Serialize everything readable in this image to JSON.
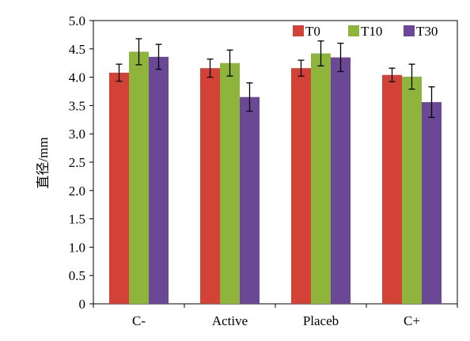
{
  "chart_data": {
    "type": "bar",
    "ylabel": "直径/mm",
    "xlabel": "",
    "title": "",
    "ylim": [
      0,
      5.0
    ],
    "ytick_step": 0.5,
    "ytick_labels": [
      "0",
      "0.5",
      "1.0",
      "1.5",
      "2.0",
      "2.5",
      "3.0",
      "3.5",
      "4.0",
      "4.5",
      "5.0"
    ],
    "grid": false,
    "legend_position": "top-right",
    "categories": [
      "C-",
      "Active",
      "Placeb",
      "C+"
    ],
    "series": [
      {
        "name": "T0",
        "color": "#d24236",
        "values": [
          4.08,
          4.16,
          4.16,
          4.04
        ],
        "errors": [
          0.15,
          0.16,
          0.14,
          0.12
        ]
      },
      {
        "name": "T10",
        "color": "#8fb43b",
        "values": [
          4.45,
          4.25,
          4.42,
          4.01
        ],
        "errors": [
          0.23,
          0.23,
          0.22,
          0.22
        ]
      },
      {
        "name": "T30",
        "color": "#6a4895",
        "values": [
          4.36,
          3.65,
          4.35,
          3.56
        ],
        "errors": [
          0.22,
          0.25,
          0.25,
          0.27
        ]
      }
    ]
  }
}
